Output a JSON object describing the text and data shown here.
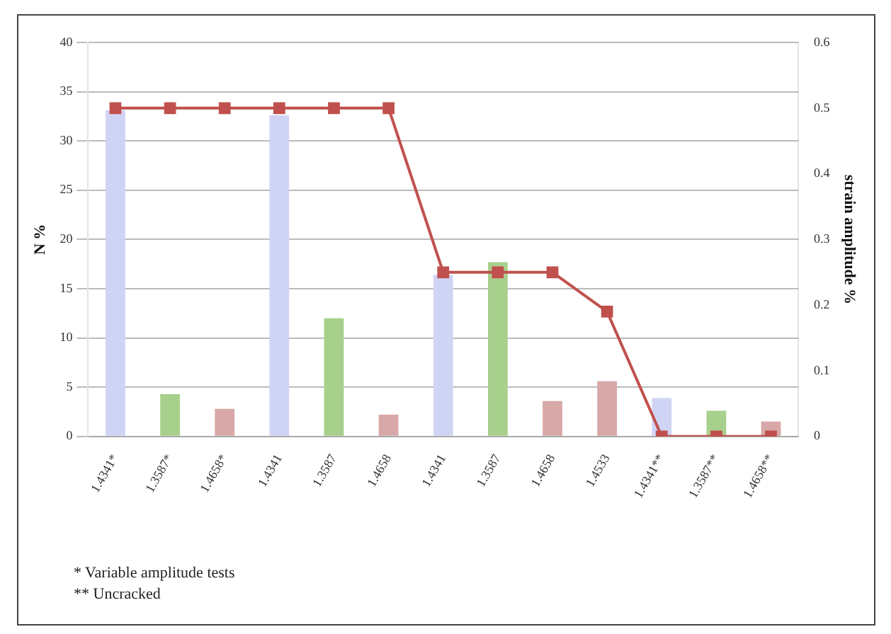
{
  "chart_data": {
    "type": "bar",
    "ylabel": "N %",
    "y2label": "strain amplitude %",
    "categories": [
      "1.4341*",
      "1.3587*",
      "1.4658*",
      "1.4341",
      "1.3587",
      "1.4658",
      "1.4341",
      "1.3587",
      "1.4658",
      "1.4533",
      "1.4341**",
      "1.3587**",
      "1.4658**"
    ],
    "series": [
      {
        "colors": [
          "#d0d4f4",
          "#a8d08d",
          "#d8a8a8",
          "#d0d4f4",
          "#a8d08d",
          "#d8a8a8",
          "#d0d4f4",
          "#a8d08d",
          "#d8a8a8",
          "#d8a8a8",
          "#d0d4f4",
          "#a8d08d",
          "#d8a8a8"
        ],
        "values": [
          33.1,
          4.3,
          2.8,
          32.6,
          12.0,
          2.2,
          16.4,
          17.7,
          3.6,
          5.6,
          3.9,
          2.6,
          1.5
        ]
      },
      {
        "type": "line",
        "axis": "y2",
        "color": "#c0504d",
        "values": [
          0.5,
          0.5,
          0.5,
          0.5,
          0.5,
          0.5,
          0.25,
          0.25,
          0.25,
          0.19,
          0,
          0,
          0
        ]
      }
    ],
    "ylim": [
      0,
      40
    ],
    "yticks": [
      0,
      5,
      10,
      15,
      20,
      25,
      30,
      35,
      40
    ],
    "y2lim": [
      0,
      0.6
    ],
    "y2ticks": [
      0,
      0.1,
      0.2,
      0.3,
      0.4,
      0.5,
      0.6
    ],
    "grid": "y",
    "marker": "square",
    "legend": false,
    "annotations": [
      "* Variable amplitude tests",
      "** Uncracked"
    ]
  }
}
